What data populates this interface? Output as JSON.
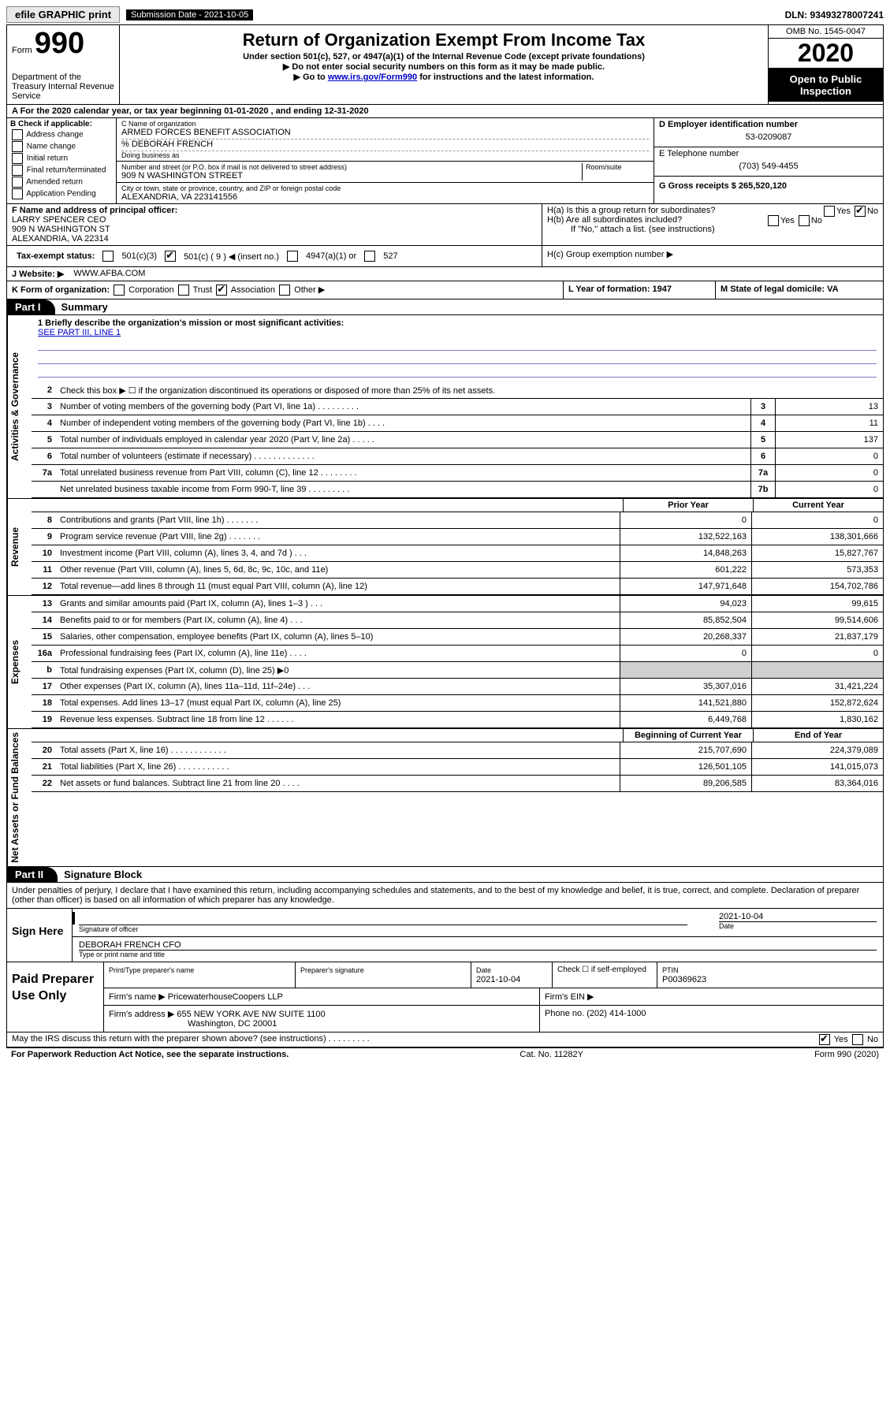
{
  "topbar": {
    "efile_label": "efile GRAPHIC print",
    "submission_label": "Submission Date - 2021-10-05",
    "dln_label": "DLN: 93493278007241"
  },
  "header": {
    "form_label": "Form",
    "form_number": "990",
    "dept": "Department of the Treasury\nInternal Revenue Service",
    "title": "Return of Organization Exempt From Income Tax",
    "subtitle": "Under section 501(c), 527, or 4947(a)(1) of the Internal Revenue Code (except private foundations)",
    "instr1": "▶ Do not enter social security numbers on this form as it may be made public.",
    "instr2_pre": "▶ Go to ",
    "instr2_link": "www.irs.gov/Form990",
    "instr2_post": " for instructions and the latest information.",
    "omb": "OMB No. 1545-0047",
    "tax_year": "2020",
    "open_public": "Open to Public Inspection"
  },
  "row_a": "A  For the 2020 calendar year, or tax year beginning 01-01-2020    , and ending 12-31-2020",
  "col_b": {
    "label": "B Check if applicable:",
    "opts": [
      "Address change",
      "Name change",
      "Initial return",
      "Final return/terminated",
      "Amended return",
      "Application Pending"
    ]
  },
  "col_c": {
    "name_label": "C Name of organization",
    "name": "ARMED FORCES BENEFIT ASSOCIATION",
    "care_of": "% DEBORAH FRENCH",
    "dba_label": "Doing business as",
    "street_label": "Number and street (or P.O. box if mail is not delivered to street address)",
    "room_label": "Room/suite",
    "street": "909 N WASHINGTON STREET",
    "city_label": "City or town, state or province, country, and ZIP or foreign postal code",
    "city": "ALEXANDRIA, VA  223141556"
  },
  "col_d": {
    "ein_label": "D Employer identification number",
    "ein": "53-0209087",
    "phone_label": "E Telephone number",
    "phone": "(703) 549-4455",
    "gross_label": "G Gross receipts $ 265,520,120"
  },
  "row_f": {
    "label": "F Name and address of principal officer:",
    "name": "LARRY SPENCER CEO",
    "addr1": "909 N WASHINGTON ST",
    "addr2": "ALEXANDRIA, VA  22314"
  },
  "row_h": {
    "a": "H(a)  Is this a group return for subordinates?",
    "b": "H(b)  Are all subordinates included?",
    "note": "If \"No,\" attach a list. (see instructions)",
    "c": "H(c)  Group exemption number ▶"
  },
  "row_i": {
    "label": "Tax-exempt status:",
    "o1": "501(c)(3)",
    "o2": "501(c) ( 9 ) ◀ (insert no.)",
    "o3": "4947(a)(1) or",
    "o4": "527"
  },
  "row_j": {
    "label": "J   Website: ▶",
    "value": "WWW.AFBA.COM"
  },
  "row_k": {
    "label": "K Form of organization:",
    "opts": [
      "Corporation",
      "Trust",
      "Association",
      "Other ▶"
    ],
    "l_label": "L Year of formation: 1947",
    "m_label": "M State of legal domicile: VA"
  },
  "part1": {
    "tab": "Part I",
    "title": "Summary",
    "q1_label": "1  Briefly describe the organization's mission or most significant activities:",
    "q1_text": "SEE PART III, LINE 1",
    "q2": "Check this box ▶ ☐  if the organization discontinued its operations or disposed of more than 25% of its net assets.",
    "gov": "Activities & Governance",
    "rev": "Revenue",
    "exp": "Expenses",
    "net": "Net Assets or Fund Balances",
    "lines_single": [
      {
        "n": "3",
        "d": "Number of voting members of the governing body (Part VI, line 1a)  .   .   .   .   .   .   .   .   .",
        "box": "3",
        "v": "13"
      },
      {
        "n": "4",
        "d": "Number of independent voting members of the governing body (Part VI, line 1b)   .   .   .   .",
        "box": "4",
        "v": "11"
      },
      {
        "n": "5",
        "d": "Total number of individuals employed in calendar year 2020 (Part V, line 2a)   .   .   .   .   .",
        "box": "5",
        "v": "137"
      },
      {
        "n": "6",
        "d": "Total number of volunteers (estimate if necessary)   .   .   .   .   .   .   .   .   .   .   .   .   .",
        "box": "6",
        "v": "0"
      },
      {
        "n": "7a",
        "d": "Total unrelated business revenue from Part VIII, column (C), line 12   .   .   .   .   .   .   .   .",
        "box": "7a",
        "v": "0"
      },
      {
        "n": "",
        "d": "Net unrelated business taxable income from Form 990-T, line 39   .   .   .   .   .   .   .   .   .",
        "box": "7b",
        "v": "0"
      }
    ],
    "col_heads": {
      "prior": "Prior Year",
      "current": "Current Year"
    },
    "rev_lines": [
      {
        "n": "8",
        "d": "Contributions and grants (Part VIII, line 1h)   .   .   .   .   .   .   .",
        "p": "0",
        "c": "0"
      },
      {
        "n": "9",
        "d": "Program service revenue (Part VIII, line 2g)   .   .   .   .   .   .   .",
        "p": "132,522,163",
        "c": "138,301,666"
      },
      {
        "n": "10",
        "d": "Investment income (Part VIII, column (A), lines 3, 4, and 7d )   .   .   .",
        "p": "14,848,263",
        "c": "15,827,767"
      },
      {
        "n": "11",
        "d": "Other revenue (Part VIII, column (A), lines 5, 6d, 8c, 9c, 10c, and 11e)",
        "p": "601,222",
        "c": "573,353"
      },
      {
        "n": "12",
        "d": "Total revenue—add lines 8 through 11 (must equal Part VIII, column (A), line 12)",
        "p": "147,971,648",
        "c": "154,702,786"
      }
    ],
    "exp_lines": [
      {
        "n": "13",
        "d": "Grants and similar amounts paid (Part IX, column (A), lines 1–3 )   .   .   .",
        "p": "94,023",
        "c": "99,615"
      },
      {
        "n": "14",
        "d": "Benefits paid to or for members (Part IX, column (A), line 4)   .   .   .",
        "p": "85,852,504",
        "c": "99,514,606"
      },
      {
        "n": "15",
        "d": "Salaries, other compensation, employee benefits (Part IX, column (A), lines 5–10)",
        "p": "20,268,337",
        "c": "21,837,179"
      },
      {
        "n": "16a",
        "d": "Professional fundraising fees (Part IX, column (A), line 11e)   .   .   .   .",
        "p": "0",
        "c": "0"
      },
      {
        "n": "b",
        "d": "Total fundraising expenses (Part IX, column (D), line 25) ▶0",
        "p": "",
        "c": "",
        "shaded": true
      },
      {
        "n": "17",
        "d": "Other expenses (Part IX, column (A), lines 11a–11d, 11f–24e)   .   .   .",
        "p": "35,307,016",
        "c": "31,421,224"
      },
      {
        "n": "18",
        "d": "Total expenses. Add lines 13–17 (must equal Part IX, column (A), line 25)",
        "p": "141,521,880",
        "c": "152,872,624"
      },
      {
        "n": "19",
        "d": "Revenue less expenses. Subtract line 18 from line 12   .   .   .   .   .   .",
        "p": "6,449,768",
        "c": "1,830,162"
      }
    ],
    "net_heads": {
      "begin": "Beginning of Current Year",
      "end": "End of Year"
    },
    "net_lines": [
      {
        "n": "20",
        "d": "Total assets (Part X, line 16)   .   .   .   .   .   .   .   .   .   .   .   .",
        "p": "215,707,690",
        "c": "224,379,089"
      },
      {
        "n": "21",
        "d": "Total liabilities (Part X, line 26)   .   .   .   .   .   .   .   .   .   .   .",
        "p": "126,501,105",
        "c": "141,015,073"
      },
      {
        "n": "22",
        "d": "Net assets or fund balances. Subtract line 21 from line 20   .   .   .   .",
        "p": "89,206,585",
        "c": "83,364,016"
      }
    ]
  },
  "part2": {
    "tab": "Part II",
    "title": "Signature Block",
    "declaration": "Under penalties of perjury, I declare that I have examined this return, including accompanying schedules and statements, and to the best of my knowledge and belief, it is true, correct, and complete. Declaration of preparer (other than officer) is based on all information of which preparer has any knowledge."
  },
  "sign": {
    "left": "Sign Here",
    "sig_officer": "Signature of officer",
    "date": "2021-10-04",
    "date_label": "Date",
    "name": "DEBORAH FRENCH CFO",
    "name_label": "Type or print name and title"
  },
  "prep": {
    "left": "Paid Preparer Use Only",
    "h1": "Print/Type preparer's name",
    "h2": "Preparer's signature",
    "h3_label": "Date",
    "h3": "2021-10-04",
    "h4": "Check ☐ if self-employed",
    "h5_label": "PTIN",
    "h5": "P00369623",
    "firm_label": "Firm's name    ▶",
    "firm": "PricewaterhouseCoopers LLP",
    "ein_label": "Firm's EIN ▶",
    "addr_label": "Firm's address ▶",
    "addr1": "655 NEW YORK AVE NW SUITE 1100",
    "addr2": "Washington, DC  20001",
    "phone_label": "Phone no. (202) 414-1000"
  },
  "footer": {
    "discuss": "May the IRS discuss this return with the preparer shown above? (see instructions)   .   .   .   .   .   .   .   .   .",
    "yes": "Yes",
    "no": "No",
    "paperwork": "For Paperwork Reduction Act Notice, see the separate instructions.",
    "catno": "Cat. No. 11282Y",
    "formno": "Form 990 (2020)"
  }
}
